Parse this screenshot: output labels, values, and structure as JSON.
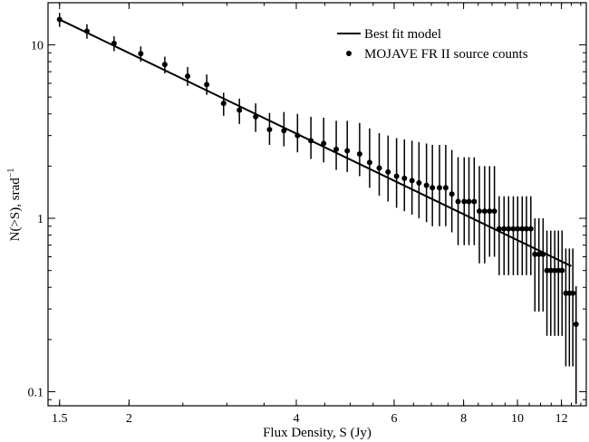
{
  "chart_data": {
    "type": "scatter",
    "title": "",
    "xlabel": "Flux Density, S (Jy)",
    "ylabel_main": "N(>S), srad",
    "ylabel_sup": "−1",
    "x_scale": "log",
    "y_scale": "log",
    "xlim": [
      1.43,
      13.3
    ],
    "ylim": [
      0.083,
      17.5
    ],
    "grid": false,
    "legend_position": "top-right",
    "x_ticks": [
      {
        "value": 1.5,
        "label": "1.5"
      },
      {
        "value": 2,
        "label": "2"
      },
      {
        "value": 4,
        "label": "4"
      },
      {
        "value": 6,
        "label": "6"
      },
      {
        "value": 8,
        "label": "8"
      },
      {
        "value": 10,
        "label": "10"
      },
      {
        "value": 12,
        "label": "12"
      }
    ],
    "y_ticks": [
      {
        "value": 10,
        "label": "10"
      },
      {
        "value": 1,
        "label": "1"
      },
      {
        "value": 0.1,
        "label": "0.1"
      }
    ],
    "series": [
      {
        "name": "Best fit model",
        "kind": "line",
        "color": "#000000",
        "x": [
          1.5,
          12.5
        ],
        "y": [
          14.0,
          0.53
        ]
      },
      {
        "name": "MOJAVE FR II source counts",
        "kind": "points_with_errorbars",
        "color": "#000000",
        "x": [
          1.5,
          1.68,
          1.88,
          2.1,
          2.32,
          2.55,
          2.76,
          2.96,
          3.16,
          3.38,
          3.58,
          3.8,
          4.02,
          4.25,
          4.48,
          4.72,
          4.94,
          5.2,
          5.42,
          5.64,
          5.85,
          6.06,
          6.26,
          6.46,
          6.65,
          6.86,
          7.03,
          7.24,
          7.43,
          7.62,
          7.82,
          8.02,
          8.18,
          8.36,
          8.54,
          8.73,
          8.91,
          9.09,
          9.27,
          9.46,
          9.64,
          9.83,
          10.01,
          10.2,
          10.38,
          10.57,
          10.75,
          10.93,
          11.12,
          11.3,
          11.48,
          11.67,
          11.85,
          12.03,
          12.22,
          12.4,
          12.58
        ],
        "y": [
          14.0,
          12.0,
          10.2,
          8.9,
          7.7,
          6.6,
          5.9,
          4.6,
          4.2,
          3.85,
          3.25,
          3.2,
          3.0,
          2.8,
          2.7,
          2.5,
          2.45,
          2.35,
          2.1,
          1.95,
          1.85,
          1.75,
          1.7,
          1.65,
          1.6,
          1.55,
          1.5,
          1.5,
          1.5,
          1.38,
          1.25,
          1.25,
          1.25,
          1.25,
          1.1,
          1.1,
          1.1,
          1.1,
          0.87,
          0.87,
          0.87,
          0.87,
          0.87,
          0.87,
          0.87,
          0.87,
          0.62,
          0.62,
          0.62,
          0.5,
          0.5,
          0.5,
          0.5,
          0.5,
          0.37,
          0.37,
          0.37
        ],
        "y_err_low": [
          1.3,
          1.15,
          1.0,
          0.9,
          0.85,
          0.8,
          0.75,
          0.7,
          0.7,
          0.7,
          0.6,
          0.6,
          0.6,
          0.6,
          0.6,
          0.6,
          0.6,
          0.6,
          0.6,
          0.6,
          0.6,
          0.6,
          0.6,
          0.6,
          0.6,
          0.6,
          0.6,
          0.6,
          0.6,
          0.55,
          0.55,
          0.55,
          0.55,
          0.55,
          0.55,
          0.55,
          0.5,
          0.5,
          0.4,
          0.4,
          0.4,
          0.4,
          0.4,
          0.4,
          0.4,
          0.4,
          0.33,
          0.33,
          0.33,
          0.29,
          0.29,
          0.29,
          0.29,
          0.29,
          0.23,
          0.23,
          0.23
        ],
        "y_err_high": [
          1.3,
          1.15,
          1.0,
          0.9,
          0.85,
          0.85,
          0.85,
          0.7,
          0.7,
          0.75,
          0.8,
          0.9,
          1.0,
          1.05,
          1.1,
          1.15,
          1.2,
          1.2,
          1.2,
          1.15,
          1.15,
          1.15,
          1.15,
          1.15,
          1.15,
          1.15,
          1.15,
          1.15,
          1.15,
          1.1,
          1.0,
          1.0,
          1.0,
          1.0,
          0.9,
          0.9,
          0.9,
          0.9,
          0.47,
          0.47,
          0.47,
          0.47,
          0.47,
          0.47,
          0.47,
          0.47,
          0.38,
          0.38,
          0.38,
          0.35,
          0.35,
          0.35,
          0.35,
          0.35,
          0.3,
          0.3,
          0.3
        ],
        "extra_points": [
          {
            "x": 12.75,
            "y": 0.245,
            "y_err_low": 0.16,
            "y_err_high": 0.16
          }
        ]
      }
    ]
  }
}
